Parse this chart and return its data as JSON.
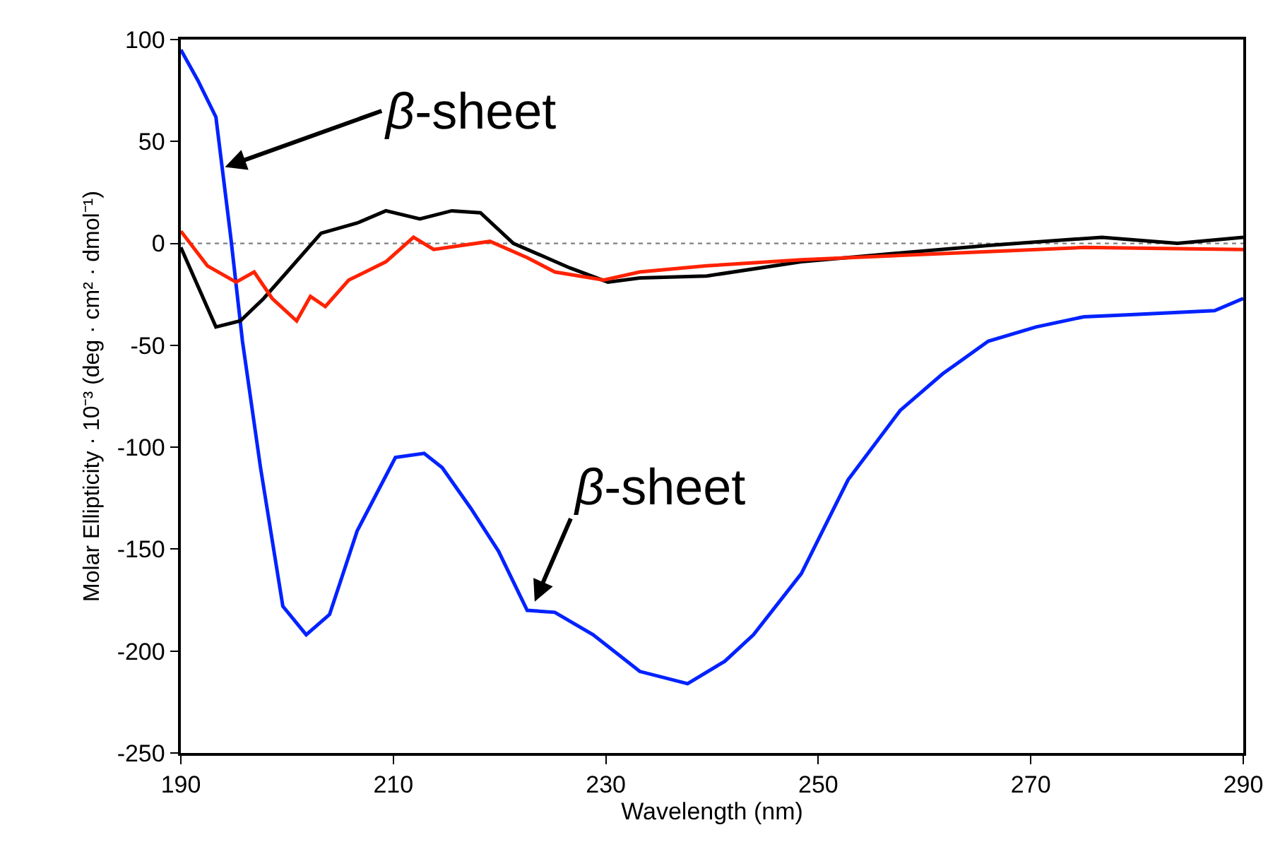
{
  "chart_data": {
    "type": "line",
    "xlabel": "Wavelength (nm)",
    "ylabel": "Molar Ellipticity · 10⁻³ (deg · cm² · dmol⁻¹)",
    "xlim": [
      190,
      290
    ],
    "xticks": [
      190,
      210,
      230,
      250,
      270,
      290
    ],
    "ylim": [
      -250,
      100
    ],
    "yticks": [
      -250,
      -200,
      -150,
      -100,
      -50,
      0,
      50,
      100
    ],
    "grid": false,
    "marker": "none",
    "line_style": "solid",
    "ref_lines": [
      {
        "axis": "y",
        "value": 0,
        "color": "#808080",
        "line_style": "dotted"
      }
    ],
    "annotations": [
      {
        "text": "β-sheet",
        "x": 193.9,
        "y": 37
      },
      {
        "text": "β-sheet",
        "x": 223.2,
        "y": -177
      }
    ],
    "series": [
      {
        "color": "#0022ff",
        "x": [
          190,
          191.6,
          193.3,
          194.7,
          195.8,
          197.5,
          199.6,
          201.8,
          204,
          206.6,
          210.2,
          212.9,
          214.6,
          217.3,
          219.9,
          222.6,
          225.2,
          228.8,
          233.2,
          237.7,
          241.2,
          243.9,
          248.4,
          252.8,
          257.7,
          261.7,
          266,
          270.5,
          275,
          279.4,
          287.3,
          290
        ],
        "values": [
          95,
          80,
          62,
          3,
          -48,
          -110,
          -178,
          -192,
          -182,
          -141,
          -105,
          -103,
          -110,
          -130,
          -151,
          -180,
          -181,
          -192,
          -210,
          -216,
          -205,
          -192,
          -162,
          -116,
          -82,
          -64,
          -48,
          -41,
          -36,
          -35,
          -33,
          -27
        ]
      },
      {
        "color": "#000000",
        "x": [
          190,
          193.3,
          195.6,
          197.8,
          200,
          203.2,
          206.6,
          209.3,
          212.5,
          215.5,
          218.2,
          221.3,
          224.4,
          226.6,
          230.2,
          233.2,
          239.5,
          248.4,
          257,
          266,
          276.7,
          283.8,
          290
        ],
        "values": [
          -2,
          -41,
          -38,
          -27,
          -14,
          5,
          10,
          16,
          12,
          16,
          15,
          0,
          -7,
          -12,
          -19,
          -17,
          -16,
          -9,
          -5,
          -1,
          3,
          0,
          3
        ]
      },
      {
        "color": "#ff2200",
        "x": [
          190,
          192.5,
          195.2,
          196.9,
          198.6,
          200.9,
          202.2,
          203.6,
          205.8,
          209.3,
          211.9,
          213.8,
          219.1,
          222.6,
          225.2,
          229.8,
          233.2,
          239.5,
          248.4,
          261.7,
          275,
          290
        ],
        "values": [
          6,
          -11,
          -19,
          -14,
          -27,
          -38,
          -26,
          -31,
          -18,
          -9,
          3,
          -3,
          1,
          -7,
          -14,
          -18,
          -14,
          -11,
          -8,
          -5,
          -2,
          -3
        ]
      }
    ]
  }
}
